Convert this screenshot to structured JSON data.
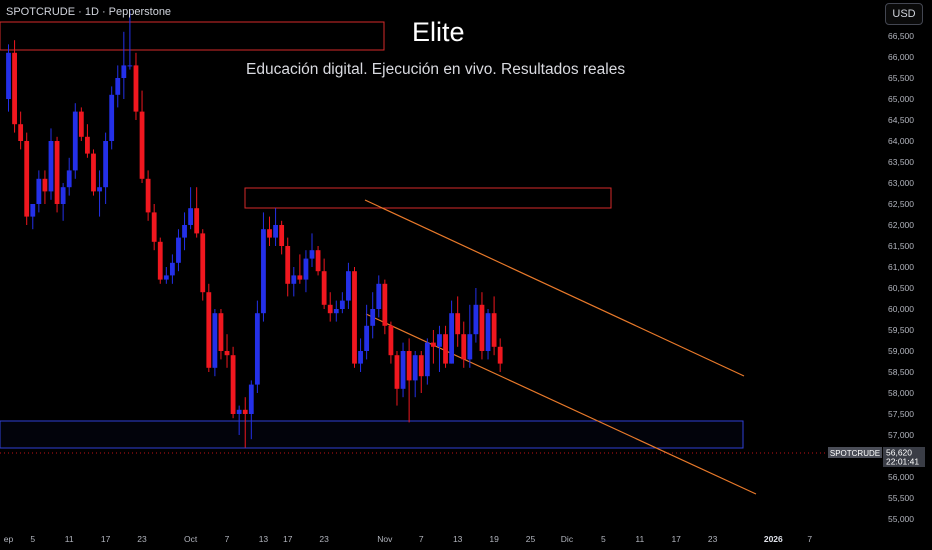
{
  "header": {
    "symbol_line": "SPOTCRUDE · 1D · Pepperstone",
    "currency_button": "USD"
  },
  "overlay": {
    "title": "Elite",
    "subtitle": "Educación digital. Ejecución en vivo. Resultados reales"
  },
  "price_badge": {
    "symbol": "SPOTCRUDE",
    "price": "56,620",
    "countdown": "22:01:41"
  },
  "colors": {
    "up": "#2430e8",
    "down": "#f0171f",
    "channel": "#e8792a",
    "resistance_box": "#d42a2a",
    "support_box": "#2f3fd6",
    "background": "#000000",
    "axis_text": "#b2b5be"
  },
  "chart_data": {
    "type": "candlestick",
    "grid": false,
    "legend": "none",
    "ylim": [
      54600,
      67200
    ],
    "y_ticks": [
      {
        "value": 55000,
        "label": "55,000"
      },
      {
        "value": 55500,
        "label": "55,500"
      },
      {
        "value": 56000,
        "label": "56,000"
      },
      {
        "value": 56500,
        "label": "56,500"
      },
      {
        "value": 57000,
        "label": "57,000"
      },
      {
        "value": 57500,
        "label": "57,500"
      },
      {
        "value": 58000,
        "label": "58,000"
      },
      {
        "value": 58500,
        "label": "58,500"
      },
      {
        "value": 59000,
        "label": "59,000"
      },
      {
        "value": 59500,
        "label": "59,500"
      },
      {
        "value": 60000,
        "label": "60,000"
      },
      {
        "value": 60500,
        "label": "60,500"
      },
      {
        "value": 61000,
        "label": "61,000"
      },
      {
        "value": 61500,
        "label": "61,500"
      },
      {
        "value": 62000,
        "label": "62,000"
      },
      {
        "value": 62500,
        "label": "62,500"
      },
      {
        "value": 63000,
        "label": "63,000"
      },
      {
        "value": 63500,
        "label": "63,500"
      },
      {
        "value": 64000,
        "label": "64,000"
      },
      {
        "value": 64500,
        "label": "64,500"
      },
      {
        "value": 65000,
        "label": "65,000"
      },
      {
        "value": 65500,
        "label": "65,500"
      },
      {
        "value": 66000,
        "label": "66,000"
      },
      {
        "value": 66500,
        "label": "66,500"
      }
    ],
    "x_ticks": [
      {
        "index": 0,
        "label": "ep"
      },
      {
        "index": 4,
        "label": "5"
      },
      {
        "index": 10,
        "label": "11"
      },
      {
        "index": 16,
        "label": "17"
      },
      {
        "index": 22,
        "label": "23"
      },
      {
        "index": 30,
        "label": "Oct"
      },
      {
        "index": 36,
        "label": "7"
      },
      {
        "index": 42,
        "label": "13"
      },
      {
        "index": 46,
        "label": "17"
      },
      {
        "index": 52,
        "label": "23"
      },
      {
        "index": 62,
        "label": "Nov"
      },
      {
        "index": 68,
        "label": "7"
      },
      {
        "index": 74,
        "label": "13"
      },
      {
        "index": 80,
        "label": "19"
      },
      {
        "index": 86,
        "label": "25"
      },
      {
        "index": 92,
        "label": "Dic"
      },
      {
        "index": 98,
        "label": "5"
      },
      {
        "index": 104,
        "label": "11"
      },
      {
        "index": 110,
        "label": "17"
      },
      {
        "index": 116,
        "label": "23"
      },
      {
        "index": 126,
        "label": "2026"
      },
      {
        "index": 132,
        "label": "7"
      }
    ],
    "candles": [
      {
        "i": 0,
        "o": 65000,
        "h": 66300,
        "l": 64700,
        "c": 66100
      },
      {
        "i": 1,
        "o": 66100,
        "h": 66400,
        "l": 64200,
        "c": 64400
      },
      {
        "i": 2,
        "o": 64400,
        "h": 64700,
        "l": 63800,
        "c": 64000
      },
      {
        "i": 3,
        "o": 64000,
        "h": 64200,
        "l": 62000,
        "c": 62200
      },
      {
        "i": 4,
        "o": 62200,
        "h": 62500,
        "l": 61900,
        "c": 62500
      },
      {
        "i": 5,
        "o": 62500,
        "h": 63300,
        "l": 62300,
        "c": 63100
      },
      {
        "i": 6,
        "o": 63100,
        "h": 63300,
        "l": 62500,
        "c": 62800
      },
      {
        "i": 7,
        "o": 62800,
        "h": 64300,
        "l": 62600,
        "c": 64000
      },
      {
        "i": 8,
        "o": 64000,
        "h": 64100,
        "l": 62300,
        "c": 62500
      },
      {
        "i": 9,
        "o": 62500,
        "h": 63000,
        "l": 62100,
        "c": 62900
      },
      {
        "i": 10,
        "o": 62900,
        "h": 63600,
        "l": 62700,
        "c": 63300
      },
      {
        "i": 11,
        "o": 63300,
        "h": 64900,
        "l": 63100,
        "c": 64700
      },
      {
        "i": 12,
        "o": 64700,
        "h": 64800,
        "l": 64000,
        "c": 64100
      },
      {
        "i": 13,
        "o": 64100,
        "h": 64400,
        "l": 63600,
        "c": 63700
      },
      {
        "i": 14,
        "o": 63700,
        "h": 63800,
        "l": 62700,
        "c": 62800
      },
      {
        "i": 15,
        "o": 62800,
        "h": 63300,
        "l": 62200,
        "c": 62900
      },
      {
        "i": 16,
        "o": 62900,
        "h": 64200,
        "l": 62500,
        "c": 64000
      },
      {
        "i": 17,
        "o": 64000,
        "h": 65300,
        "l": 63800,
        "c": 65100
      },
      {
        "i": 18,
        "o": 65100,
        "h": 65800,
        "l": 64800,
        "c": 65500
      },
      {
        "i": 19,
        "o": 65500,
        "h": 66600,
        "l": 65000,
        "c": 65800
      },
      {
        "i": 20,
        "o": 65800,
        "h": 67100,
        "l": 65700,
        "c": 65800
      },
      {
        "i": 21,
        "o": 65800,
        "h": 66100,
        "l": 64500,
        "c": 64700
      },
      {
        "i": 22,
        "o": 64700,
        "h": 65200,
        "l": 63000,
        "c": 63100
      },
      {
        "i": 23,
        "o": 63100,
        "h": 63300,
        "l": 62100,
        "c": 62300
      },
      {
        "i": 24,
        "o": 62300,
        "h": 62500,
        "l": 61400,
        "c": 61600
      },
      {
        "i": 25,
        "o": 61600,
        "h": 61700,
        "l": 60600,
        "c": 60700
      },
      {
        "i": 26,
        "o": 60700,
        "h": 61000,
        "l": 60600,
        "c": 60800
      },
      {
        "i": 27,
        "o": 60800,
        "h": 61300,
        "l": 60600,
        "c": 61100
      },
      {
        "i": 28,
        "o": 61100,
        "h": 61900,
        "l": 60900,
        "c": 61700
      },
      {
        "i": 29,
        "o": 61700,
        "h": 62300,
        "l": 61400,
        "c": 62000
      },
      {
        "i": 30,
        "o": 62000,
        "h": 62900,
        "l": 61900,
        "c": 62400
      },
      {
        "i": 31,
        "o": 62400,
        "h": 62900,
        "l": 61700,
        "c": 61800
      },
      {
        "i": 32,
        "o": 61800,
        "h": 61900,
        "l": 60200,
        "c": 60400
      },
      {
        "i": 33,
        "o": 60400,
        "h": 60600,
        "l": 58500,
        "c": 58600
      },
      {
        "i": 34,
        "o": 58600,
        "h": 60000,
        "l": 58400,
        "c": 59900
      },
      {
        "i": 35,
        "o": 59900,
        "h": 60000,
        "l": 58800,
        "c": 59000
      },
      {
        "i": 36,
        "o": 59000,
        "h": 59400,
        "l": 58600,
        "c": 58900
      },
      {
        "i": 37,
        "o": 58900,
        "h": 59100,
        "l": 57400,
        "c": 57500
      },
      {
        "i": 38,
        "o": 57500,
        "h": 57700,
        "l": 57000,
        "c": 57600
      },
      {
        "i": 39,
        "o": 57600,
        "h": 57900,
        "l": 56700,
        "c": 57500
      },
      {
        "i": 40,
        "o": 57500,
        "h": 58300,
        "l": 56900,
        "c": 58200
      },
      {
        "i": 41,
        "o": 58200,
        "h": 60200,
        "l": 58000,
        "c": 59900
      },
      {
        "i": 42,
        "o": 59900,
        "h": 62300,
        "l": 59700,
        "c": 61900
      },
      {
        "i": 43,
        "o": 61900,
        "h": 62200,
        "l": 61500,
        "c": 61700
      },
      {
        "i": 44,
        "o": 61700,
        "h": 62400,
        "l": 61500,
        "c": 62000
      },
      {
        "i": 45,
        "o": 62000,
        "h": 62100,
        "l": 61300,
        "c": 61500
      },
      {
        "i": 46,
        "o": 61500,
        "h": 61700,
        "l": 60300,
        "c": 60600
      },
      {
        "i": 47,
        "o": 60600,
        "h": 61000,
        "l": 60300,
        "c": 60800
      },
      {
        "i": 48,
        "o": 60800,
        "h": 61300,
        "l": 60600,
        "c": 60700
      },
      {
        "i": 49,
        "o": 60700,
        "h": 61400,
        "l": 60400,
        "c": 61200
      },
      {
        "i": 50,
        "o": 61200,
        "h": 61800,
        "l": 61000,
        "c": 61400
      },
      {
        "i": 51,
        "o": 61400,
        "h": 61500,
        "l": 60800,
        "c": 60900
      },
      {
        "i": 52,
        "o": 60900,
        "h": 61200,
        "l": 60000,
        "c": 60100
      },
      {
        "i": 53,
        "o": 60100,
        "h": 60400,
        "l": 59700,
        "c": 59900
      },
      {
        "i": 54,
        "o": 59900,
        "h": 60200,
        "l": 59700,
        "c": 60000
      },
      {
        "i": 55,
        "o": 60000,
        "h": 60400,
        "l": 59900,
        "c": 60200
      },
      {
        "i": 56,
        "o": 60200,
        "h": 61100,
        "l": 60000,
        "c": 60900
      },
      {
        "i": 57,
        "o": 60900,
        "h": 61000,
        "l": 58600,
        "c": 58700
      },
      {
        "i": 58,
        "o": 58700,
        "h": 59300,
        "l": 58500,
        "c": 59000
      },
      {
        "i": 59,
        "o": 59000,
        "h": 60100,
        "l": 58800,
        "c": 59600
      },
      {
        "i": 60,
        "o": 59600,
        "h": 60400,
        "l": 59300,
        "c": 60000
      },
      {
        "i": 61,
        "o": 60000,
        "h": 60800,
        "l": 59800,
        "c": 60600
      },
      {
        "i": 62,
        "o": 60600,
        "h": 60700,
        "l": 59400,
        "c": 59600
      },
      {
        "i": 63,
        "o": 59600,
        "h": 59700,
        "l": 58700,
        "c": 58900
      },
      {
        "i": 64,
        "o": 58900,
        "h": 59000,
        "l": 57700,
        "c": 58100
      },
      {
        "i": 65,
        "o": 58100,
        "h": 59200,
        "l": 57900,
        "c": 59000
      },
      {
        "i": 66,
        "o": 59000,
        "h": 59300,
        "l": 57300,
        "c": 58300
      },
      {
        "i": 67,
        "o": 58300,
        "h": 59000,
        "l": 57900,
        "c": 58900
      },
      {
        "i": 68,
        "o": 58900,
        "h": 59000,
        "l": 58000,
        "c": 58400
      },
      {
        "i": 69,
        "o": 58400,
        "h": 59300,
        "l": 58200,
        "c": 59200
      },
      {
        "i": 70,
        "o": 59200,
        "h": 59500,
        "l": 58700,
        "c": 59100
      },
      {
        "i": 71,
        "o": 59100,
        "h": 59600,
        "l": 58500,
        "c": 59400
      },
      {
        "i": 72,
        "o": 59400,
        "h": 59600,
        "l": 58600,
        "c": 58700
      },
      {
        "i": 73,
        "o": 58700,
        "h": 60200,
        "l": 58700,
        "c": 59900
      },
      {
        "i": 74,
        "o": 59900,
        "h": 60300,
        "l": 59100,
        "c": 59400
      },
      {
        "i": 75,
        "o": 59400,
        "h": 59700,
        "l": 58600,
        "c": 58800
      },
      {
        "i": 76,
        "o": 58800,
        "h": 60100,
        "l": 58600,
        "c": 59400
      },
      {
        "i": 77,
        "o": 59400,
        "h": 60500,
        "l": 59200,
        "c": 60100
      },
      {
        "i": 78,
        "o": 60100,
        "h": 60400,
        "l": 58800,
        "c": 59000
      },
      {
        "i": 79,
        "o": 59000,
        "h": 60000,
        "l": 58800,
        "c": 59900
      },
      {
        "i": 80,
        "o": 59900,
        "h": 60300,
        "l": 58900,
        "c": 59100
      },
      {
        "i": 81,
        "o": 59100,
        "h": 59300,
        "l": 58500,
        "c": 58700
      }
    ]
  }
}
